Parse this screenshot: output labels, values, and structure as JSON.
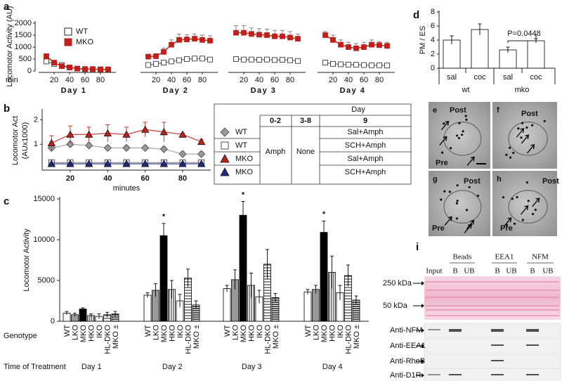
{
  "chart_data": [
    {
      "panel_label": "a",
      "type": "line",
      "ylabel": "Locomotor Activity (AU)",
      "xlabel": "min",
      "days": [
        "Day 1",
        "Day 2",
        "Day 3",
        "Day 4"
      ],
      "x": [
        10,
        20,
        30,
        40,
        50,
        60,
        70,
        80,
        90
      ],
      "xlim": [
        0,
        100
      ],
      "xticks": [
        20,
        40,
        60,
        80
      ],
      "ylim": [
        0,
        2000
      ],
      "yticks": [
        0,
        500,
        1000,
        1500,
        2000
      ],
      "series": [
        {
          "name": "WT",
          "color": "#ffffff",
          "values": [
            [
              400,
              300,
              250,
              150,
              100,
              80,
              80,
              70,
              50
            ],
            [
              250,
              300,
              350,
              400,
              450,
              500,
              520,
              520,
              480
            ],
            [
              500,
              480,
              480,
              470,
              480,
              460,
              470,
              450,
              420
            ],
            [
              350,
              300,
              280,
              270,
              260,
              250,
              240,
              240,
              230
            ]
          ]
        },
        {
          "name": "MKO",
          "color": "#c0201a",
          "values": [
            [
              620,
              350,
              200,
              150,
              100,
              80,
              80,
              60,
              70
            ],
            [
              600,
              620,
              800,
              1100,
              1300,
              1320,
              1350,
              1300,
              1270
            ],
            [
              1600,
              1600,
              1550,
              1520,
              1500,
              1450,
              1450,
              1400,
              1350
            ],
            [
              1500,
              1300,
              1100,
              1000,
              950,
              1000,
              1100,
              1080,
              1050
            ]
          ],
          "errors": [
            [
              80,
              50,
              40,
              30,
              20,
              20,
              20,
              20,
              20
            ],
            [
              100,
              100,
              150,
              200,
              250,
              200,
              200,
              200,
              200
            ],
            [
              300,
              300,
              250,
              250,
              250,
              250,
              250,
              250,
              200
            ],
            [
              150,
              200,
              200,
              200,
              200,
              200,
              200,
              150,
              150
            ]
          ]
        }
      ]
    },
    {
      "panel_label": "b",
      "type": "line",
      "ylabel": [
        "Locomotor Act",
        "(AUx1000)"
      ],
      "xlabel": "minutes",
      "x": [
        10,
        20,
        30,
        40,
        50,
        60,
        70,
        80,
        90
      ],
      "xlim": [
        5,
        95
      ],
      "xticks": [
        20,
        40,
        60,
        80
      ],
      "ylim": [
        0,
        2.3
      ],
      "yticks": [
        1,
        2
      ],
      "legend_header": "Day",
      "legend_columns": [
        "0-2",
        "3-8",
        "9"
      ],
      "legend_pretreatment": [
        "Amph",
        "None"
      ],
      "series": [
        {
          "name": "WT",
          "marker": "diamond",
          "color": "#999999",
          "treatment": "Sal+Amph",
          "values": [
            0.85,
            1.0,
            0.95,
            0.85,
            0.85,
            0.85,
            0.8,
            0.6,
            0.6
          ],
          "errors": [
            0.1,
            0.1,
            0.1,
            0.1,
            0.1,
            0.1,
            0.1,
            0.1,
            0.1
          ]
        },
        {
          "name": "WT",
          "marker": "square",
          "color": "#ffffff",
          "treatment": "SCH+Amph",
          "values": [
            0.25,
            0.25,
            0.25,
            0.25,
            0.25,
            0.25,
            0.25,
            0.25,
            0.25
          ],
          "errors": [
            0.05,
            0.05,
            0.05,
            0.05,
            0.05,
            0.05,
            0.05,
            0.05,
            0.05
          ]
        },
        {
          "name": "MKO",
          "marker": "triangle",
          "color": "#c0201a",
          "treatment": "Sal+Amph",
          "values": [
            1.05,
            1.4,
            1.4,
            1.45,
            1.4,
            1.6,
            1.5,
            1.4,
            1.1
          ],
          "errors": [
            0.3,
            0.35,
            0.3,
            0.35,
            0.3,
            0.3,
            0.4,
            0.05,
            0.1
          ]
        },
        {
          "name": "MKO",
          "marker": "triangle",
          "color": "#1a2a80",
          "treatment": "SCH+Amph",
          "values": [
            0.2,
            0.2,
            0.2,
            0.2,
            0.2,
            0.2,
            0.2,
            0.2,
            0.2
          ],
          "errors": [
            0.05,
            0.05,
            0.05,
            0.05,
            0.05,
            0.05,
            0.05,
            0.05,
            0.05
          ]
        }
      ]
    },
    {
      "panel_label": "c",
      "type": "bar",
      "ylabel": "Locomotor Activity",
      "genotype_label": "Genotype",
      "xlabel": "Time of Treatment",
      "categories": [
        "Day 1",
        "Day 2",
        "Day 3",
        "Day 4"
      ],
      "ylim": [
        0,
        15000
      ],
      "yticks": [
        0,
        5000,
        10000,
        15000
      ],
      "series": [
        {
          "name": "WT",
          "color": "#ffffff",
          "pattern": null,
          "values": [
            1000,
            3200,
            4000,
            3600
          ],
          "errors": [
            200,
            300,
            400,
            300
          ]
        },
        {
          "name": "LKO",
          "color": "#999999",
          "pattern": null,
          "values": [
            800,
            3800,
            5100,
            3900
          ],
          "errors": [
            200,
            800,
            1200,
            500
          ]
        },
        {
          "name": "MKO",
          "color": "#000000",
          "pattern": null,
          "values": [
            1500,
            10500,
            13000,
            10900
          ],
          "errors": [
            150,
            1500,
            1700,
            1400
          ],
          "markers": [
            null,
            "*",
            "*",
            "*"
          ]
        },
        {
          "name": "HKO",
          "color": "#ffffff",
          "pattern": "vertical",
          "values": [
            700,
            3900,
            4400,
            6000
          ],
          "errors": [
            200,
            1100,
            1500,
            2000
          ]
        },
        {
          "name": "IKO",
          "color": "#ffffff",
          "pattern": null,
          "values": [
            600,
            2500,
            3000,
            3500
          ],
          "errors": [
            300,
            800,
            800,
            900
          ]
        },
        {
          "name": "HL-DKO",
          "color": "#ffffff",
          "pattern": "horizontal",
          "values": [
            800,
            5300,
            7000,
            5600
          ],
          "errors": [
            300,
            1100,
            1800,
            1300
          ]
        },
        {
          "name": "MKO ±",
          "color": "#ffffff",
          "pattern": "horizontal-dense",
          "values": [
            900,
            2000,
            2900,
            2600
          ],
          "errors": [
            300,
            500,
            500,
            500
          ]
        }
      ]
    },
    {
      "panel_label": "d",
      "type": "bar",
      "ylabel": "PM / ES",
      "categories": [
        "sal",
        "coc",
        "sal",
        "coc"
      ],
      "groups": [
        "wt",
        "mko"
      ],
      "values": [
        4.0,
        5.5,
        2.6,
        3.9
      ],
      "errors": [
        0.6,
        0.8,
        0.4,
        0.3
      ],
      "color": "#ffffff",
      "ylim": [
        0,
        8
      ],
      "yticks": [
        0,
        2,
        4,
        6,
        8
      ],
      "annotation": "P=0.0448"
    }
  ],
  "micrographs": [
    {
      "label": "e",
      "texts": [
        "Post",
        "Pre"
      ]
    },
    {
      "label": "f",
      "texts": [
        "Post"
      ]
    },
    {
      "label": "g",
      "texts": [
        "Post",
        "Pre"
      ]
    },
    {
      "label": "h",
      "texts": [
        "Post",
        "Pre"
      ]
    }
  ],
  "blot": {
    "label": "i",
    "groups": [
      "Beads",
      "EEA1",
      "NFM"
    ],
    "lanes": [
      "Input",
      "B",
      "UB",
      "B",
      "UB",
      "B",
      "UB"
    ],
    "markers": [
      "250 kDa",
      "50 kDa"
    ],
    "antibodies": [
      "Anti-NFM",
      "Anti-EEA1",
      "Anti-RhoB",
      "Anti-D1R"
    ]
  }
}
